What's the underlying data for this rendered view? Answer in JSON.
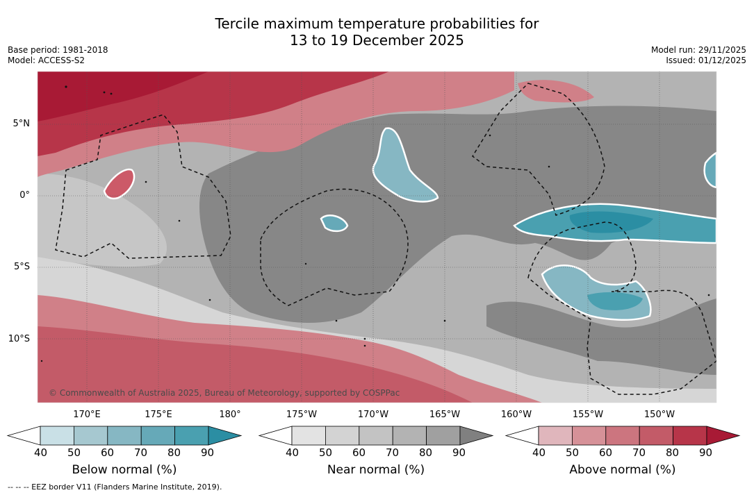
{
  "title": {
    "line1": "Tercile maximum temperature probabilities for",
    "line2": "13 to 19 December 2025"
  },
  "meta": {
    "base_period": "Base period: 1981-2018",
    "model": "Model: ACCESS-S2",
    "model_run": "Model run: 29/11/2025",
    "issued": "Issued: 01/12/2025"
  },
  "map": {
    "latitudes": [
      "5°N",
      "0°",
      "5°S",
      "10°S"
    ],
    "longitudes": [
      "170°E",
      "175°E",
      "180°",
      "175°W",
      "170°W",
      "165°W",
      "160°W",
      "155°W",
      "150°W"
    ],
    "copyright": "© Commonwealth of Australia 2025, Bureau of Meteorology, supported by COSPPac",
    "lat_range": [
      "14.5°S",
      "8.5°N"
    ],
    "lon_range": [
      "167°E",
      "147°W"
    ]
  },
  "colorbars": [
    {
      "name": "below-normal",
      "title": "Below normal (%)",
      "ticks": [
        "40",
        "50",
        "60",
        "70",
        "80",
        "90"
      ],
      "colors": [
        "#ffffff",
        "#c9e0e6",
        "#a6c8d0",
        "#86b7c3",
        "#66a9b8",
        "#4aa0b0",
        "#2b8ea3"
      ]
    },
    {
      "name": "near-normal",
      "title": "Near normal (%)",
      "ticks": [
        "40",
        "50",
        "60",
        "70",
        "80",
        "90"
      ],
      "colors": [
        "#ffffff",
        "#e3e3e3",
        "#d3d3d3",
        "#c3c3c3",
        "#b3b3b3",
        "#a0a0a0",
        "#808080"
      ]
    },
    {
      "name": "above-normal",
      "title": "Above normal (%)",
      "ticks": [
        "40",
        "50",
        "60",
        "70",
        "80",
        "90"
      ],
      "colors": [
        "#ffffff",
        "#e0b6bc",
        "#d69198",
        "#cc757f",
        "#c35b68",
        "#b73549",
        "#a81a35"
      ]
    }
  ],
  "footer": "--  --  -- EEZ border V11 (Flanders Marine Institute, 2019)."
}
